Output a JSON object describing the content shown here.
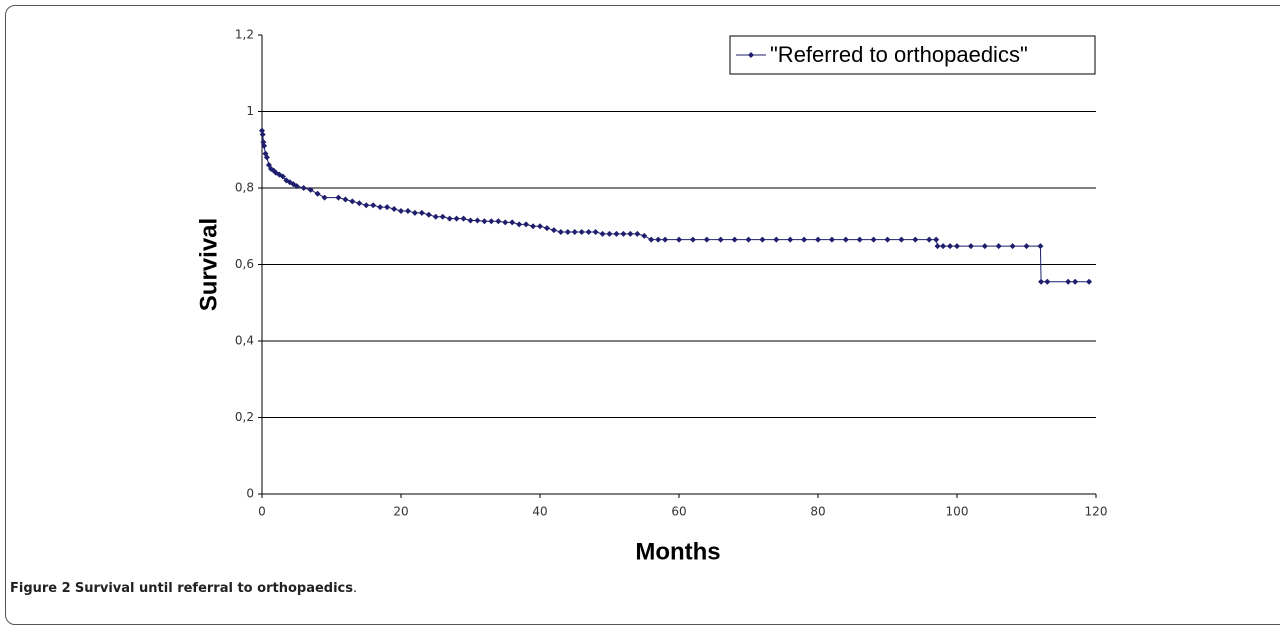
{
  "chart_data": {
    "type": "line",
    "xlabel": "Months",
    "ylabel": "Survival",
    "xlim": [
      0,
      120
    ],
    "xticks": [
      0,
      20,
      40,
      60,
      80,
      100,
      120
    ],
    "ylim": [
      0,
      1.2
    ],
    "yticks": [
      0,
      {
        "value": 0.2,
        "label": "0,2"
      },
      {
        "value": 0.4,
        "label": "0,4"
      },
      {
        "value": 0.6,
        "label": "0,6"
      },
      {
        "value": 0.8,
        "label": "0,8"
      },
      1,
      {
        "value": 1.2,
        "label": "1,2"
      }
    ],
    "grid": true,
    "legend": "upper right",
    "series": [
      {
        "name": "\"Referred to orthopaedics\"",
        "color": "#1f1f6e",
        "x": [
          0,
          0.1,
          0.2,
          0.3,
          0.5,
          0.7,
          1,
          1.3,
          1.7,
          2,
          2.5,
          3,
          3.5,
          4,
          4.5,
          5,
          6,
          7,
          8,
          9,
          11,
          12,
          13,
          14,
          15,
          16,
          17,
          18,
          19,
          20,
          21,
          22,
          23,
          24,
          25,
          26,
          27,
          28,
          29,
          30,
          31,
          32,
          33,
          34,
          35,
          36,
          37,
          38,
          39,
          40,
          41,
          42,
          43,
          44,
          45,
          46,
          47,
          48,
          49,
          50,
          51,
          52,
          53,
          54,
          55,
          56,
          57,
          58,
          60,
          62,
          64,
          66,
          68,
          70,
          72,
          74,
          76,
          78,
          80,
          82,
          84,
          86,
          88,
          90,
          92,
          94,
          96,
          97,
          97.2,
          98,
          99,
          100,
          102,
          104,
          106,
          108,
          110,
          112,
          112.1,
          113,
          116,
          117,
          119
        ],
        "values": [
          0.95,
          0.94,
          0.92,
          0.91,
          0.89,
          0.88,
          0.86,
          0.85,
          0.845,
          0.84,
          0.835,
          0.83,
          0.82,
          0.815,
          0.81,
          0.805,
          0.8,
          0.795,
          0.785,
          0.775,
          0.775,
          0.77,
          0.765,
          0.76,
          0.755,
          0.755,
          0.75,
          0.75,
          0.745,
          0.74,
          0.74,
          0.735,
          0.735,
          0.73,
          0.725,
          0.725,
          0.72,
          0.72,
          0.72,
          0.715,
          0.715,
          0.713,
          0.713,
          0.713,
          0.71,
          0.71,
          0.705,
          0.705,
          0.7,
          0.7,
          0.695,
          0.69,
          0.685,
          0.685,
          0.685,
          0.685,
          0.685,
          0.685,
          0.68,
          0.68,
          0.68,
          0.68,
          0.68,
          0.68,
          0.675,
          0.665,
          0.665,
          0.665,
          0.665,
          0.665,
          0.665,
          0.665,
          0.665,
          0.665,
          0.665,
          0.665,
          0.665,
          0.665,
          0.665,
          0.665,
          0.665,
          0.665,
          0.665,
          0.665,
          0.665,
          0.665,
          0.665,
          0.665,
          0.648,
          0.648,
          0.648,
          0.648,
          0.648,
          0.648,
          0.648,
          0.648,
          0.648,
          0.648,
          0.555,
          0.555,
          0.555,
          0.555,
          0.555
        ]
      }
    ]
  },
  "caption": {
    "label": "Figure 2",
    "text": "Survival until referral to orthopaedics",
    "end": "."
  }
}
